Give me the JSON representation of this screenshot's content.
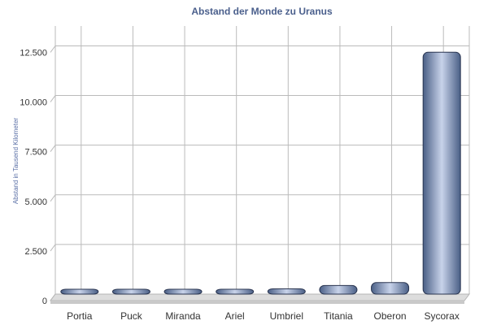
{
  "chart_data": {
    "type": "bar",
    "title": "Abstand der Monde zu Uranus",
    "xlabel": "",
    "ylabel": "Abstand in Tausend Kilometer",
    "categories": [
      "Portia",
      "Puck",
      "Miranda",
      "Ariel",
      "Umbriel",
      "Titania",
      "Oberon",
      "Sycorax"
    ],
    "values": [
      66.1,
      86.0,
      129.9,
      190.9,
      266.0,
      436.3,
      583.5,
      12179
    ],
    "ylim": [
      0,
      13500
    ],
    "yticks": [
      0,
      2500,
      5000,
      7500,
      10000,
      12500
    ],
    "ytick_labels": [
      "0",
      "2.500",
      "5.000",
      "7.500",
      "10.000",
      "12.500"
    ],
    "grid": true,
    "colors": {
      "title": "#4a5f8c",
      "ylabel": "#5a6fa6",
      "bar_dark": "#4a5f86",
      "bar_light": "#c8d3ea",
      "bar_stroke": "#2a3550",
      "grid": "#bbbbbb",
      "floor": "#dddddd"
    }
  }
}
